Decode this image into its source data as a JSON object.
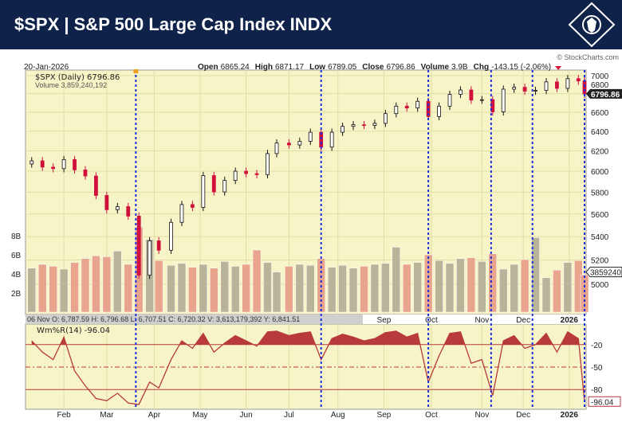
{
  "header": {
    "title": "$SPX | S&P 500 Large Cap Index INDX",
    "logo": "lion-diamond-logo"
  },
  "info": {
    "date": "20-Jan-2026",
    "open_label": "Open",
    "open": "6865.24",
    "high_label": "High",
    "high": "6871.17",
    "low_label": "Low",
    "low": "6789.05",
    "close_label": "Close",
    "close": "6796.86",
    "volume_label": "Volume",
    "volume": "3.9B",
    "chg_label": "Chg",
    "chg": "-143.15 (-2.06%)",
    "watermark": "© StockCharts.com"
  },
  "legend": {
    "price": "$SPX (Daily) 6796.86",
    "volume": "Volume 3,859,240,192",
    "indicator": "Wm%R(14) -96.04"
  },
  "readout": "06 Nov O: 6,787.59  H: 6,796.68  L: 6,707.51  C: 6,720.32  V: 3,613,179,392  Y: 6,841.51",
  "colors": {
    "header": "#0f2249",
    "plot_bg": "#f7f5c8",
    "up": "#111111",
    "down": "#d0103a",
    "vol_up": "#b8b49a",
    "vol_down": "#e8a48c",
    "indicator": "#b83a3a",
    "markers": "#1a2ee0"
  },
  "chart_data": [
    {
      "type": "candlestick",
      "scale": "log",
      "ylim": [
        4900,
        7050
      ],
      "yticks": [
        7000,
        6800,
        6600,
        6400,
        6200,
        6000,
        5800,
        5600,
        5400,
        5200,
        5000
      ],
      "last_value_label": "6796.86",
      "dates": [
        "2025-01-24",
        "2025-01-31",
        "2025-02-07",
        "2025-02-14",
        "2025-02-21",
        "2025-02-28",
        "2025-03-07",
        "2025-03-14",
        "2025-03-21",
        "2025-03-28",
        "2025-04-04",
        "2025-04-11",
        "2025-04-17",
        "2025-04-25",
        "2025-05-02",
        "2025-05-09",
        "2025-05-16",
        "2025-05-23",
        "2025-05-30",
        "2025-06-06",
        "2025-06-13",
        "2025-06-20",
        "2025-06-27",
        "2025-07-03",
        "2025-07-11",
        "2025-07-18",
        "2025-07-25",
        "2025-08-01",
        "2025-08-08",
        "2025-08-15",
        "2025-08-22",
        "2025-08-29",
        "2025-09-05",
        "2025-09-12",
        "2025-09-19",
        "2025-09-26",
        "2025-10-03",
        "2025-10-10",
        "2025-10-17",
        "2025-10-24",
        "2025-10-31",
        "2025-11-07",
        "2025-11-14",
        "2025-11-21",
        "2025-11-28",
        "2025-12-05",
        "2025-12-12",
        "2025-12-19",
        "2025-12-26",
        "2026-01-02",
        "2026-01-09",
        "2026-01-16",
        "2026-01-20"
      ],
      "close": [
        6101,
        6040,
        6025,
        6114,
        6013,
        5954,
        5770,
        5639,
        5667,
        5581,
        5074,
        5363,
        5282,
        5525,
        5686,
        5660,
        5958,
        5803,
        5912,
        6000,
        5977,
        5967,
        6173,
        6279,
        6260,
        6297,
        6389,
        6238,
        6389,
        6450,
        6467,
        6460,
        6482,
        6584,
        6664,
        6644,
        6716,
        6553,
        6664,
        6792,
        6840,
        6729,
        6734,
        6603,
        6849,
        6870,
        6827,
        6835,
        6930,
        6858,
        6966,
        6940,
        6797
      ]
    },
    {
      "type": "bar",
      "name": "Volume",
      "unit": "B",
      "yticks": [
        "8B",
        "6B",
        "4B",
        "2B"
      ],
      "ylim": [
        0,
        10
      ],
      "last_value_label": "3859240",
      "values": [
        4.6,
        5.0,
        4.8,
        4.5,
        5.2,
        5.6,
        5.9,
        5.8,
        6.4,
        5.0,
        8.9,
        7.6,
        5.4,
        4.9,
        5.1,
        4.7,
        5.0,
        4.6,
        5.3,
        4.8,
        5.0,
        6.5,
        5.2,
        4.2,
        4.8,
        5.0,
        4.9,
        5.6,
        4.7,
        4.9,
        4.6,
        4.8,
        5.0,
        5.1,
        6.8,
        5.0,
        5.2,
        6.0,
        5.4,
        5.1,
        5.6,
        5.7,
        5.3,
        6.1,
        4.5,
        5.0,
        5.5,
        7.8,
        3.6,
        4.4,
        5.2,
        5.4,
        3.9
      ]
    },
    {
      "type": "area",
      "name": "Wm%R(14)",
      "ylim": [
        -100,
        0
      ],
      "yticks": [
        -20,
        -50,
        -80
      ],
      "last_value_label": "-96.04",
      "values": [
        -15,
        -30,
        -40,
        -10,
        -55,
        -75,
        -92,
        -95,
        -85,
        -98,
        -100,
        -70,
        -78,
        -40,
        -15,
        -25,
        -5,
        -30,
        -18,
        -8,
        -15,
        -22,
        -3,
        -2,
        -8,
        -5,
        -3,
        -40,
        -12,
        -6,
        -10,
        -15,
        -12,
        -4,
        -2,
        -10,
        -5,
        -70,
        -35,
        -5,
        -3,
        -45,
        -40,
        -88,
        -15,
        -8,
        -25,
        -20,
        -5,
        -30,
        -3,
        -12,
        -96
      ]
    },
    {
      "type": "axis",
      "month_labels": [
        {
          "label": "Feb",
          "date": "2025-02-14"
        },
        {
          "label": "Mar",
          "date": "2025-03-14"
        },
        {
          "label": "Apr",
          "date": "2025-04-14"
        },
        {
          "label": "May",
          "date": "2025-05-14"
        },
        {
          "label": "Jun",
          "date": "2025-06-13"
        },
        {
          "label": "Jul",
          "date": "2025-07-11"
        },
        {
          "label": "Aug",
          "date": "2025-08-12"
        },
        {
          "label": "Sep",
          "date": "2025-09-11"
        },
        {
          "label": "Oct",
          "date": "2025-10-12"
        },
        {
          "label": "Nov",
          "date": "2025-11-14"
        },
        {
          "label": "Dec",
          "date": "2025-12-11"
        },
        {
          "label": "2026",
          "date": "2026-01-10"
        }
      ],
      "marker_dates": [
        "2025-04-02",
        "2025-08-01",
        "2025-10-10",
        "2025-11-20",
        "2025-12-17",
        "2026-01-20"
      ],
      "range": [
        "2025-01-21",
        "2026-01-20"
      ]
    }
  ]
}
